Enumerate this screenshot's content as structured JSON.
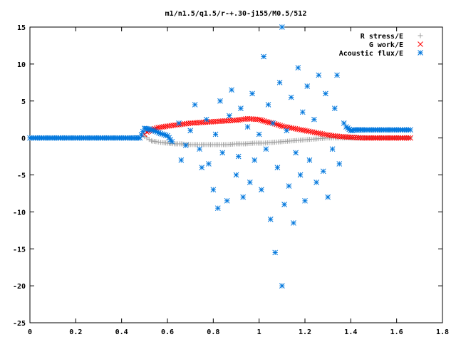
{
  "chart_data": {
    "type": "scatter",
    "title": "m1/n1.5/q1.5/r-+.30-j155/M0.5/512",
    "xlabel": "",
    "ylabel": "",
    "xlim": [
      0,
      1.8
    ],
    "ylim": [
      -25,
      15
    ],
    "x_ticks": [
      "0",
      "0.2",
      "0.4",
      "0.6",
      "0.8",
      "1",
      "1.2",
      "1.4",
      "1.6",
      "1.8"
    ],
    "y_ticks": [
      "15",
      "10",
      "5",
      "0",
      "-5",
      "-10",
      "-15",
      "-20",
      "-25"
    ],
    "grid": false,
    "legend_position": "top-right",
    "series": [
      {
        "name": "R stress/E",
        "marker": "plus",
        "color": "#a0a0a0",
        "points": [
          [
            0.5,
            0.2
          ],
          [
            0.51,
            0.0
          ],
          [
            0.52,
            -0.2
          ],
          [
            0.53,
            -0.4
          ],
          [
            0.55,
            -0.5
          ],
          [
            0.57,
            -0.6
          ],
          [
            0.6,
            -0.7
          ],
          [
            0.63,
            -0.8
          ],
          [
            0.66,
            -0.8
          ],
          [
            0.7,
            -0.9
          ],
          [
            0.74,
            -0.9
          ],
          [
            0.78,
            -0.9
          ],
          [
            0.82,
            -0.9
          ],
          [
            0.86,
            -0.9
          ],
          [
            0.9,
            -0.8
          ],
          [
            0.94,
            -0.8
          ],
          [
            0.98,
            -0.7
          ],
          [
            1.02,
            -0.7
          ],
          [
            1.06,
            -0.6
          ],
          [
            1.1,
            -0.5
          ],
          [
            1.14,
            -0.4
          ],
          [
            1.18,
            -0.3
          ],
          [
            1.22,
            -0.2
          ],
          [
            1.26,
            -0.1
          ],
          [
            1.3,
            0.0
          ],
          [
            1.34,
            0.0
          ],
          [
            1.38,
            0.0
          ],
          [
            1.42,
            0.0
          ],
          [
            1.46,
            0.0
          ],
          [
            1.5,
            0.0
          ],
          [
            1.55,
            0.0
          ],
          [
            1.6,
            0.0
          ],
          [
            1.66,
            0.0
          ]
        ]
      },
      {
        "name": "G work/E",
        "marker": "cross",
        "color": "#ff0000",
        "points": [
          [
            0.5,
            0.5
          ],
          [
            0.51,
            0.8
          ],
          [
            0.53,
            1.1
          ],
          [
            0.56,
            1.4
          ],
          [
            0.6,
            1.6
          ],
          [
            0.65,
            1.8
          ],
          [
            0.7,
            2.0
          ],
          [
            0.75,
            2.1
          ],
          [
            0.8,
            2.2
          ],
          [
            0.85,
            2.3
          ],
          [
            0.9,
            2.4
          ],
          [
            0.95,
            2.6
          ],
          [
            1.0,
            2.5
          ],
          [
            1.03,
            2.2
          ],
          [
            1.06,
            2.0
          ],
          [
            1.1,
            1.6
          ],
          [
            1.15,
            1.3
          ],
          [
            1.2,
            1.0
          ],
          [
            1.25,
            0.7
          ],
          [
            1.3,
            0.4
          ],
          [
            1.35,
            0.2
          ],
          [
            1.4,
            0.1
          ],
          [
            1.45,
            0.0
          ],
          [
            1.5,
            0.0
          ],
          [
            1.55,
            0.0
          ],
          [
            1.6,
            0.0
          ],
          [
            1.66,
            0.0
          ]
        ]
      },
      {
        "name": "Acoustic flux/E",
        "marker": "star",
        "color": "#0077dd",
        "points": [
          [
            0.0,
            0.0
          ],
          [
            0.05,
            0.0
          ],
          [
            0.1,
            0.0
          ],
          [
            0.15,
            0.0
          ],
          [
            0.2,
            0.0
          ],
          [
            0.25,
            0.0
          ],
          [
            0.3,
            0.0
          ],
          [
            0.35,
            0.0
          ],
          [
            0.4,
            0.0
          ],
          [
            0.45,
            0.0
          ],
          [
            0.48,
            0.0
          ],
          [
            0.5,
            1.3
          ],
          [
            0.52,
            1.2
          ],
          [
            0.54,
            1.0
          ],
          [
            0.57,
            0.6
          ],
          [
            0.6,
            0.3
          ],
          [
            0.62,
            -0.5
          ],
          [
            0.65,
            2.0
          ],
          [
            0.66,
            -3.0
          ],
          [
            0.68,
            -1.0
          ],
          [
            0.7,
            1.0
          ],
          [
            0.72,
            4.5
          ],
          [
            0.74,
            -1.5
          ],
          [
            0.75,
            -4.0
          ],
          [
            0.77,
            2.5
          ],
          [
            0.78,
            -3.5
          ],
          [
            0.8,
            -7.0
          ],
          [
            0.81,
            0.5
          ],
          [
            0.82,
            -9.5
          ],
          [
            0.83,
            5.0
          ],
          [
            0.84,
            -2.0
          ],
          [
            0.86,
            -8.5
          ],
          [
            0.87,
            3.0
          ],
          [
            0.88,
            6.5
          ],
          [
            0.9,
            -5.0
          ],
          [
            0.91,
            -2.5
          ],
          [
            0.92,
            4.0
          ],
          [
            0.93,
            -8.0
          ],
          [
            0.95,
            1.5
          ],
          [
            0.96,
            -6.0
          ],
          [
            0.97,
            6.0
          ],
          [
            0.98,
            -3.0
          ],
          [
            1.0,
            0.5
          ],
          [
            1.01,
            -7.0
          ],
          [
            1.02,
            11.0
          ],
          [
            1.03,
            -1.5
          ],
          [
            1.04,
            4.5
          ],
          [
            1.05,
            -11.0
          ],
          [
            1.06,
            2.0
          ],
          [
            1.07,
            -15.5
          ],
          [
            1.08,
            -4.0
          ],
          [
            1.09,
            7.5
          ],
          [
            1.1,
            15.0
          ],
          [
            1.1,
            -20.0
          ],
          [
            1.11,
            -9.0
          ],
          [
            1.12,
            1.0
          ],
          [
            1.13,
            -6.5
          ],
          [
            1.14,
            5.5
          ],
          [
            1.15,
            -11.5
          ],
          [
            1.16,
            -2.0
          ],
          [
            1.17,
            9.5
          ],
          [
            1.18,
            -5.0
          ],
          [
            1.19,
            3.5
          ],
          [
            1.2,
            -8.5
          ],
          [
            1.21,
            7.0
          ],
          [
            1.22,
            -3.0
          ],
          [
            1.24,
            2.5
          ],
          [
            1.25,
            -6.0
          ],
          [
            1.26,
            8.5
          ],
          [
            1.28,
            -4.5
          ],
          [
            1.29,
            6.0
          ],
          [
            1.3,
            -8.0
          ],
          [
            1.32,
            -1.5
          ],
          [
            1.33,
            4.0
          ],
          [
            1.34,
            8.5
          ],
          [
            1.35,
            -3.5
          ],
          [
            1.37,
            2.0
          ],
          [
            1.38,
            1.5
          ],
          [
            1.4,
            1.0
          ],
          [
            1.42,
            1.1
          ],
          [
            1.45,
            1.1
          ],
          [
            1.5,
            1.1
          ],
          [
            1.55,
            1.1
          ],
          [
            1.6,
            1.1
          ],
          [
            1.66,
            1.1
          ]
        ]
      }
    ]
  }
}
